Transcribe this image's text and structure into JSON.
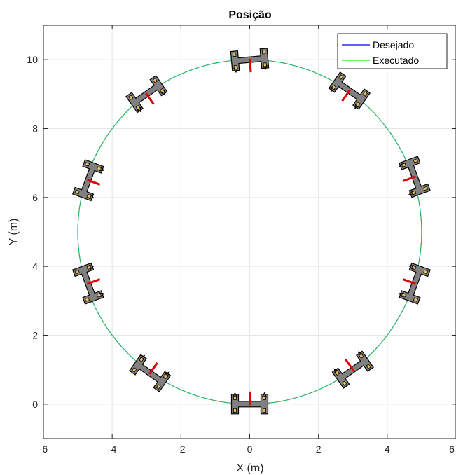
{
  "chart_data": {
    "type": "line",
    "title": "Posição",
    "xlabel": "X (m)",
    "ylabel": "Y (m)",
    "xlim": [
      -6,
      6
    ],
    "ylim": [
      -1,
      11
    ],
    "xticks": [
      -6,
      -4,
      -2,
      0,
      2,
      4,
      6
    ],
    "yticks": [
      0,
      2,
      4,
      6,
      8,
      10
    ],
    "grid": true,
    "legend_position": "top-right",
    "series": [
      {
        "name": "Desejado",
        "color": "#0000ff",
        "shape": "circle",
        "center": [
          0,
          5
        ],
        "radius": 5
      },
      {
        "name": "Executado",
        "color": "#00ff00",
        "shape": "circle",
        "center": [
          0,
          5
        ],
        "radius": 5
      }
    ],
    "robots": [
      {
        "x": 0.0,
        "y": 0.0,
        "heading_deg": 90
      },
      {
        "x": -2.9,
        "y": 0.9,
        "heading_deg": 55
      },
      {
        "x": -4.7,
        "y": 3.5,
        "heading_deg": 20
      },
      {
        "x": -4.7,
        "y": 6.5,
        "heading_deg": -20
      },
      {
        "x": -3.0,
        "y": 9.0,
        "heading_deg": -55
      },
      {
        "x": 0.0,
        "y": 10.0,
        "heading_deg": -85
      },
      {
        "x": 2.9,
        "y": 9.1,
        "heading_deg": -125
      },
      {
        "x": 4.8,
        "y": 6.6,
        "heading_deg": -160
      },
      {
        "x": 4.8,
        "y": 3.5,
        "heading_deg": 160
      },
      {
        "x": 3.0,
        "y": 1.0,
        "heading_deg": 125
      }
    ]
  }
}
